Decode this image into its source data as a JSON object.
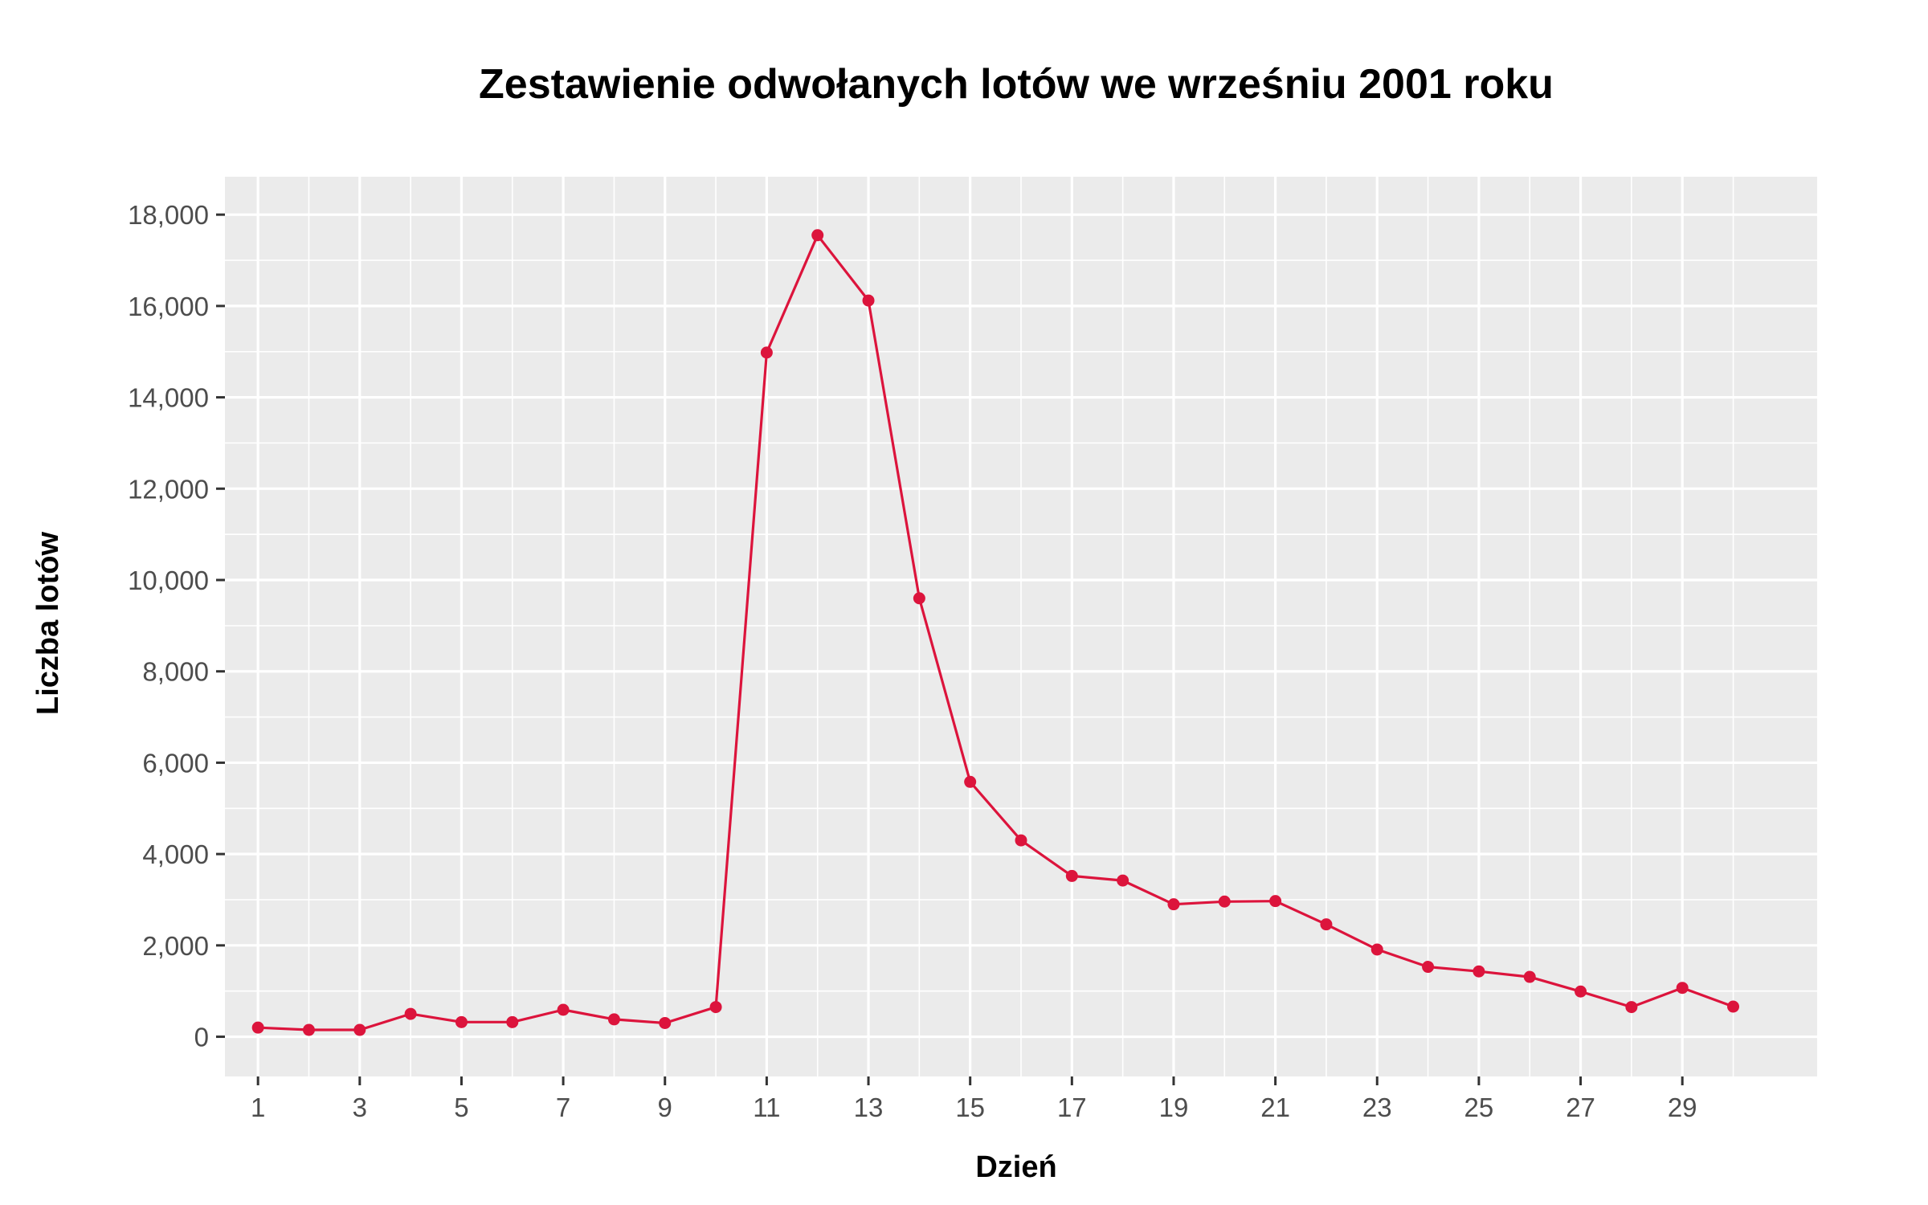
{
  "chart_data": {
    "type": "line",
    "title": "Zestawienie odwołanych lotów we wrześniu 2001 roku",
    "xlabel": "Dzień",
    "ylabel": "Liczba lotów",
    "x": [
      1,
      2,
      3,
      4,
      5,
      6,
      7,
      8,
      9,
      10,
      11,
      12,
      13,
      14,
      15,
      16,
      17,
      18,
      19,
      20,
      21,
      22,
      23,
      24,
      25,
      26,
      27,
      28,
      29,
      30
    ],
    "values": [
      200,
      150,
      150,
      500,
      320,
      320,
      590,
      380,
      300,
      650,
      14980,
      17550,
      16120,
      9600,
      5580,
      4300,
      3520,
      3420,
      2900,
      2960,
      2970,
      2460,
      1910,
      1530,
      1430,
      1310,
      990,
      650,
      1070,
      660
    ],
    "xlim": [
      0.35,
      31.65
    ],
    "ylim": [
      -870,
      18830
    ],
    "x_ticks": [
      1,
      3,
      5,
      7,
      9,
      11,
      13,
      15,
      17,
      19,
      21,
      23,
      25,
      27,
      29
    ],
    "x_tick_labels": [
      "1",
      "3",
      "5",
      "7",
      "9",
      "11",
      "13",
      "15",
      "17",
      "19",
      "21",
      "23",
      "25",
      "27",
      "29"
    ],
    "y_ticks": [
      0,
      2000,
      4000,
      6000,
      8000,
      10000,
      12000,
      14000,
      16000,
      18000
    ],
    "y_tick_labels": [
      "0",
      "2,000",
      "4,000",
      "6,000",
      "8,000",
      "10,000",
      "12,000",
      "14,000",
      "16,000",
      "18,000"
    ],
    "grid": true,
    "line_color": "#dc143c",
    "panel_color": "#ebebeb",
    "grid_color": "#ffffff"
  }
}
